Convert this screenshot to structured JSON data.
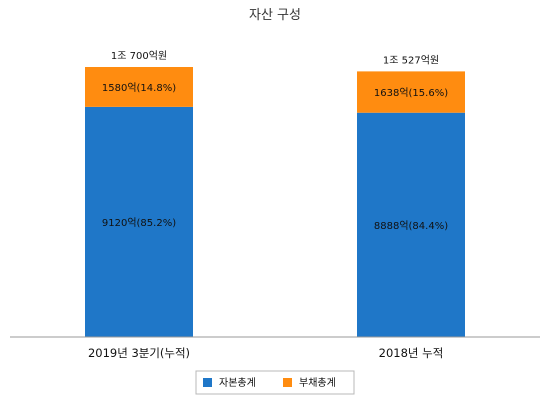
{
  "chart_data": {
    "type": "bar",
    "stacked": true,
    "title": "자산 구성",
    "categories": [
      "2019년 3분기(누적)",
      "2018년 누적"
    ],
    "totals": [
      "1조 700억원",
      "1조 527억원"
    ],
    "series": [
      {
        "name": "자본총계",
        "values": [
          9120,
          8888
        ],
        "labels": [
          "9120억(85.2%)",
          "8888억(84.4%)"
        ],
        "color": "#1F77C8"
      },
      {
        "name": "부채총계",
        "values": [
          1580,
          1638
        ],
        "labels": [
          "1580억(14.8%)",
          "1638억(15.6%)"
        ],
        "color": "#FF8C10"
      }
    ],
    "ylim": [
      0,
      12000
    ],
    "grid": false,
    "legend": "bottom"
  }
}
